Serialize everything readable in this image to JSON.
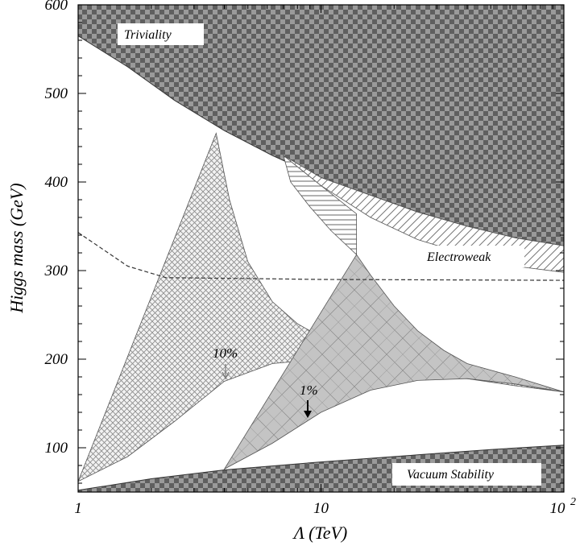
{
  "chart_data": {
    "type": "area",
    "title": "",
    "xlabel": "Λ (TeV)",
    "ylabel": "Higgs mass (GeV)",
    "x_scale": "log",
    "xlim": [
      1,
      100
    ],
    "ylim": [
      50,
      600
    ],
    "x_ticks": [
      {
        "value": 1,
        "label": "1"
      },
      {
        "value": 10,
        "label": "10"
      },
      {
        "value": 100,
        "label": "10",
        "exponent": "2"
      }
    ],
    "y_ticks": [
      100,
      200,
      300,
      400,
      500,
      600
    ],
    "grid": false,
    "legend": "none",
    "regions": [
      {
        "name": "Triviality",
        "label": "Triviality",
        "pattern": "dark-checker",
        "boundary": [
          [
            1,
            565
          ],
          [
            1.6,
            530
          ],
          [
            2.5,
            492
          ],
          [
            4,
            458
          ],
          [
            6.3,
            430
          ],
          [
            10,
            405
          ],
          [
            16,
            385
          ],
          [
            25,
            366
          ],
          [
            40,
            350
          ],
          [
            63,
            337
          ],
          [
            100,
            328
          ]
        ]
      },
      {
        "name": "Vacuum Stability",
        "label": "Vacuum Stability",
        "pattern": "dark-checker",
        "boundary": [
          [
            1,
            52
          ],
          [
            2,
            65
          ],
          [
            4,
            75
          ],
          [
            10,
            84
          ],
          [
            25,
            92
          ],
          [
            50,
            98
          ],
          [
            100,
            103
          ]
        ]
      },
      {
        "name": "Electroweak",
        "label": "Electroweak",
        "pattern": "diagonal-hatch",
        "boundary": [
          [
            7,
            430
          ],
          [
            10,
            396
          ],
          [
            16,
            360
          ],
          [
            25,
            335
          ],
          [
            40,
            318
          ],
          [
            63,
            305
          ],
          [
            100,
            298
          ]
        ]
      },
      {
        "name": "Fine-tuning 10%",
        "label": "10%",
        "pattern": "crosshatch",
        "upper": [
          [
            3.7,
            455
          ],
          [
            4.2,
            380
          ],
          [
            5,
            310
          ],
          [
            6.3,
            265
          ],
          [
            8,
            240
          ],
          [
            10,
            225
          ],
          [
            16,
            205
          ],
          [
            25,
            190
          ],
          [
            40,
            178
          ],
          [
            63,
            170
          ],
          [
            100,
            163
          ]
        ],
        "lower": [
          [
            1,
            62
          ],
          [
            1.6,
            90
          ],
          [
            2.5,
            130
          ],
          [
            4,
            175
          ],
          [
            6.3,
            195
          ],
          [
            10,
            200
          ],
          [
            16,
            197
          ],
          [
            25,
            190
          ],
          [
            40,
            180
          ],
          [
            63,
            172
          ],
          [
            100,
            163
          ]
        ]
      },
      {
        "name": "Fine-tuning 1%",
        "label": "1%",
        "pattern": "grey-stipple",
        "upper": [
          [
            14,
            318
          ],
          [
            16,
            295
          ],
          [
            20,
            260
          ],
          [
            25,
            232
          ],
          [
            32,
            210
          ],
          [
            40,
            195
          ],
          [
            63,
            180
          ],
          [
            100,
            163
          ]
        ],
        "lower": [
          [
            4,
            76
          ],
          [
            6.3,
            105
          ],
          [
            10,
            140
          ],
          [
            16,
            165
          ],
          [
            25,
            176
          ],
          [
            40,
            178
          ],
          [
            63,
            172
          ],
          [
            100,
            163
          ]
        ]
      }
    ],
    "dashed_line": [
      [
        1,
        343
      ],
      [
        1.6,
        305
      ],
      [
        2.3,
        292
      ],
      [
        5,
        291
      ],
      [
        10,
        290
      ],
      [
        100,
        289
      ]
    ]
  }
}
